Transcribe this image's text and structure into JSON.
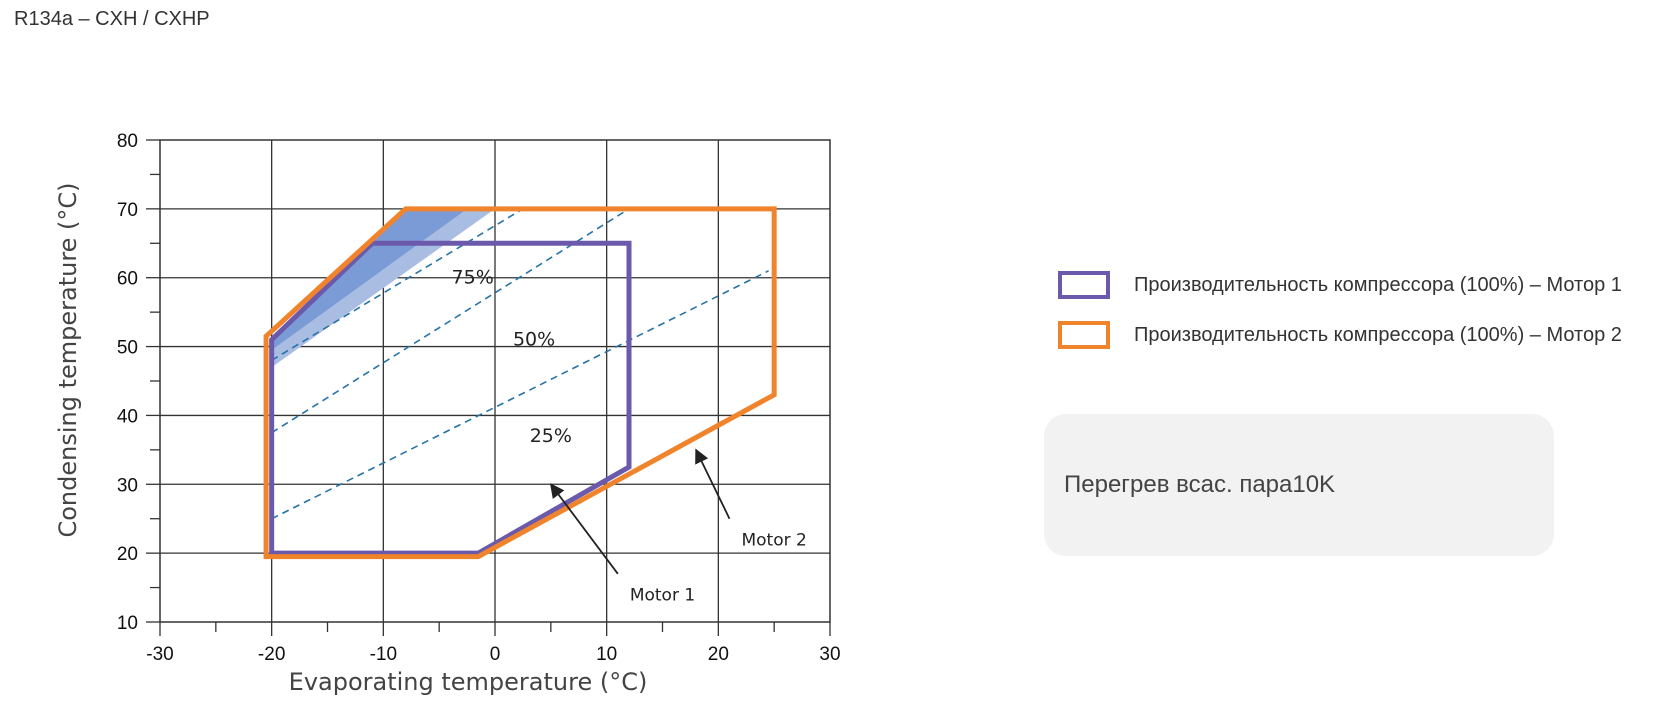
{
  "page": {
    "title": "R134a – CXH / CXHP"
  },
  "chart_data": {
    "type": "area",
    "xlabel": "Evaporating temperature (°C)",
    "ylabel": "Condensing temperature (°C)",
    "xlim": [
      -30,
      30
    ],
    "ylim": [
      10,
      80
    ],
    "xticks": [
      -30,
      -20,
      -10,
      0,
      10,
      20,
      30
    ],
    "yticks": [
      10,
      20,
      30,
      40,
      50,
      60,
      70,
      80
    ],
    "grid": true,
    "series": [
      {
        "name": "Производительность компрессора (100%) – Мотор 1",
        "color": "#6b5aab",
        "polygon": [
          [
            -20,
            20
          ],
          [
            -1.5,
            20
          ],
          [
            12,
            32.5
          ],
          [
            12,
            65
          ],
          [
            -11,
            65
          ],
          [
            -20,
            51
          ]
        ]
      },
      {
        "name": "Производительность компрессора (100%) – Мотор 2",
        "color": "#f0842c",
        "polygon": [
          [
            -20.5,
            19.5
          ],
          [
            -1.5,
            19.5
          ],
          [
            25,
            43
          ],
          [
            25,
            70
          ],
          [
            -8,
            70
          ],
          [
            -20.5,
            51.5
          ]
        ]
      }
    ],
    "shaded_regions": [
      {
        "color": "#a9bde3",
        "polygon": [
          [
            -20,
            47
          ],
          [
            -20,
            51
          ],
          [
            -11,
            65
          ],
          [
            -8,
            70
          ],
          [
            0,
            70
          ]
        ]
      },
      {
        "color": "#7a9bd6",
        "polygon": [
          [
            -20,
            49.5
          ],
          [
            -20,
            51
          ],
          [
            -11,
            65
          ],
          [
            -8,
            70
          ],
          [
            -2.5,
            70
          ]
        ]
      }
    ],
    "capacity_lines": {
      "color": "#2673a8",
      "lines": [
        {
          "from": [
            -20,
            48
          ],
          "to": [
            2.5,
            70
          ]
        },
        {
          "from": [
            -20,
            37.5
          ],
          "to": [
            12,
            70
          ]
        },
        {
          "from": [
            -20,
            25
          ],
          "to": [
            24.5,
            61
          ]
        }
      ],
      "labels": [
        {
          "text": "75%",
          "x": -2,
          "y": 60
        },
        {
          "text": "50%",
          "x": 3.5,
          "y": 51
        },
        {
          "text": "25%",
          "x": 5,
          "y": 37
        }
      ]
    },
    "annotations": [
      {
        "text": "Motor 1",
        "text_at": [
          15,
          14
        ],
        "arrow_from": [
          11,
          17
        ],
        "arrow_to": [
          5,
          30
        ]
      },
      {
        "text": "Motor 2",
        "text_at": [
          25,
          22
        ],
        "arrow_from": [
          21,
          25
        ],
        "arrow_to": [
          18,
          35
        ]
      }
    ]
  },
  "legend": {
    "items": [
      {
        "label": "Производительность компрессора (100%) – Мотор 1",
        "color": "#6b5aab"
      },
      {
        "label": "Производительность компрессора (100%) – Мотор 2",
        "color": "#f0842c"
      }
    ]
  },
  "note": {
    "text": "Перегрев всас. пара10K"
  }
}
